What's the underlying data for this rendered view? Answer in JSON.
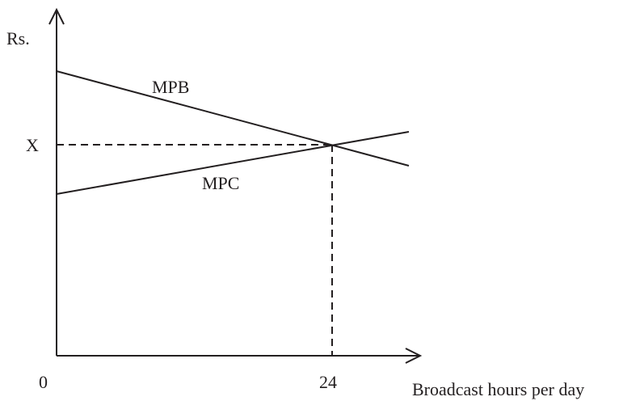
{
  "diagram": {
    "y_axis_label": "Rs.",
    "x_axis_label": "Broadcast hours per day",
    "origin_label": "0",
    "x_tick_label": "24",
    "y_tick_label": "X",
    "curves": {
      "mpb_label": "MPB",
      "mpc_label": "MPC"
    }
  }
}
